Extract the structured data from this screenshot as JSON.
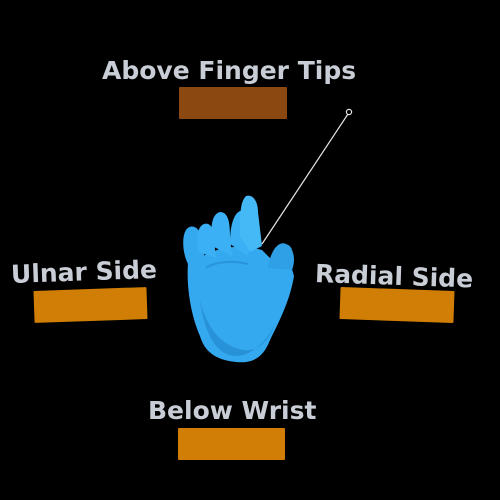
{
  "zones": {
    "above": {
      "label": "Above Finger Tips"
    },
    "ulnar": {
      "label": "Ulnar Side"
    },
    "radial": {
      "label": "Radial Side"
    },
    "below": {
      "label": "Below Wrist"
    }
  },
  "colors": {
    "bar_orange": "#d07e06",
    "bar_brown": "#8b4810",
    "hand": "#35a9f0",
    "hand_shade": "#1d7fc4",
    "text": "#c9ced6",
    "pointer": "#e6e6e6"
  },
  "icons": {
    "hand": "hand-icon",
    "pointer": "pointer-ray-icon"
  }
}
